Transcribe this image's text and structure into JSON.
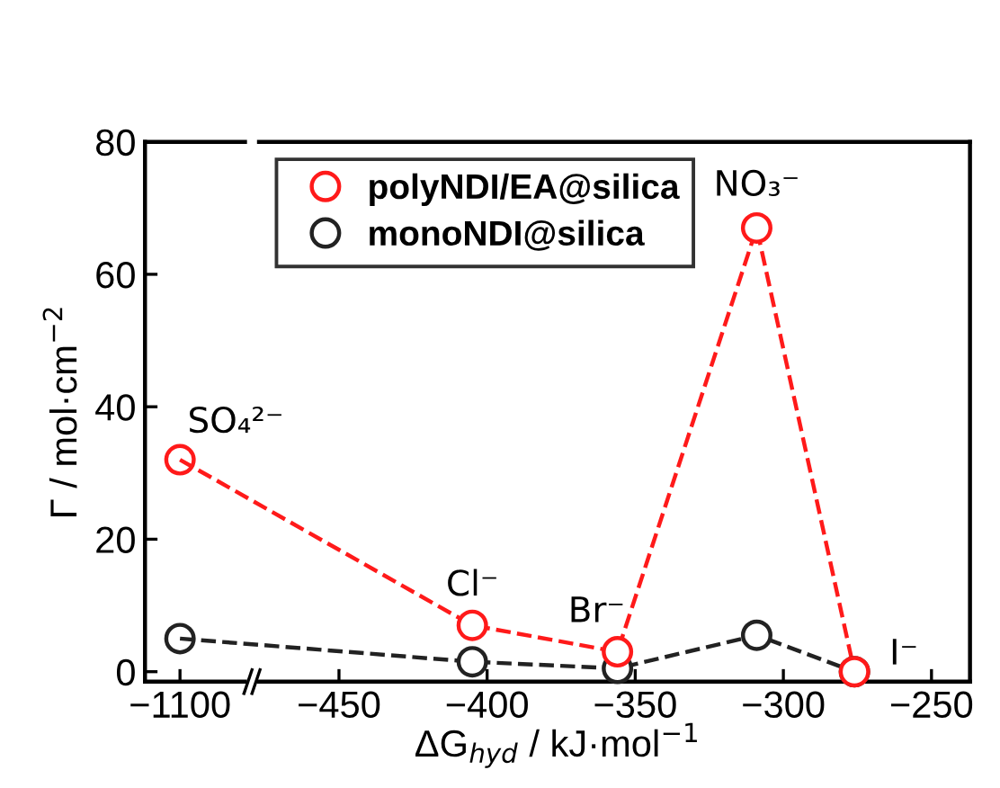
{
  "chart_data": [
    {
      "type": "line",
      "ylabel": "Γ / mol·cm$^{−2}$",
      "ylim": [
        -1.5,
        80
      ],
      "yticks": [
        0,
        20,
        40,
        60,
        80
      ],
      "categories": [
        "−1100"
      ],
      "series": [
        {
          "color": "#ff1a1a",
          "values": [
            32
          ]
        },
        {
          "color": "#222222",
          "values": [
            5
          ]
        }
      ],
      "annotations": [
        {
          "text": "SO₄²⁻",
          "x": "−1100",
          "y": 32
        }
      ],
      "marker": "circle",
      "line_style": "dashed"
    },
    {
      "type": "line",
      "xlabel": "ΔG$_{hyd}$ / kJ·mol$^{−1}$",
      "xlim": [
        -477,
        -237
      ],
      "ylim": [
        -1.5,
        80
      ],
      "yticks": [
        0,
        20,
        40,
        60,
        80
      ],
      "xticks": [
        {
          "value": -450,
          "label": "−450"
        },
        {
          "value": -400,
          "label": "−400"
        },
        {
          "value": -350,
          "label": "−350"
        },
        {
          "value": -300,
          "label": "−300"
        },
        {
          "value": -250,
          "label": "−250"
        }
      ],
      "x": [
        -405,
        -356,
        -309,
        -276
      ],
      "tick_labels": "x",
      "series": [
        {
          "name": "polyNDI/EA@silica",
          "color": "#ff1a1a",
          "values": [
            7,
            3,
            67,
            0
          ]
        },
        {
          "name": "monoNDI@silica",
          "color": "#222222",
          "values": [
            1.5,
            0.5,
            5.5,
            0
          ]
        }
      ],
      "annotations": [
        {
          "text": "Cl⁻",
          "x": -405,
          "y": 7
        },
        {
          "text": "Br⁻",
          "x": -356,
          "y": 3
        },
        {
          "text": "NO₃⁻",
          "x": -309,
          "y": 67
        },
        {
          "text": "I⁻",
          "x": -276,
          "y": 0
        }
      ],
      "marker": "circle",
      "line_style": "dashed",
      "legend": "top left",
      "grid": false
    }
  ]
}
